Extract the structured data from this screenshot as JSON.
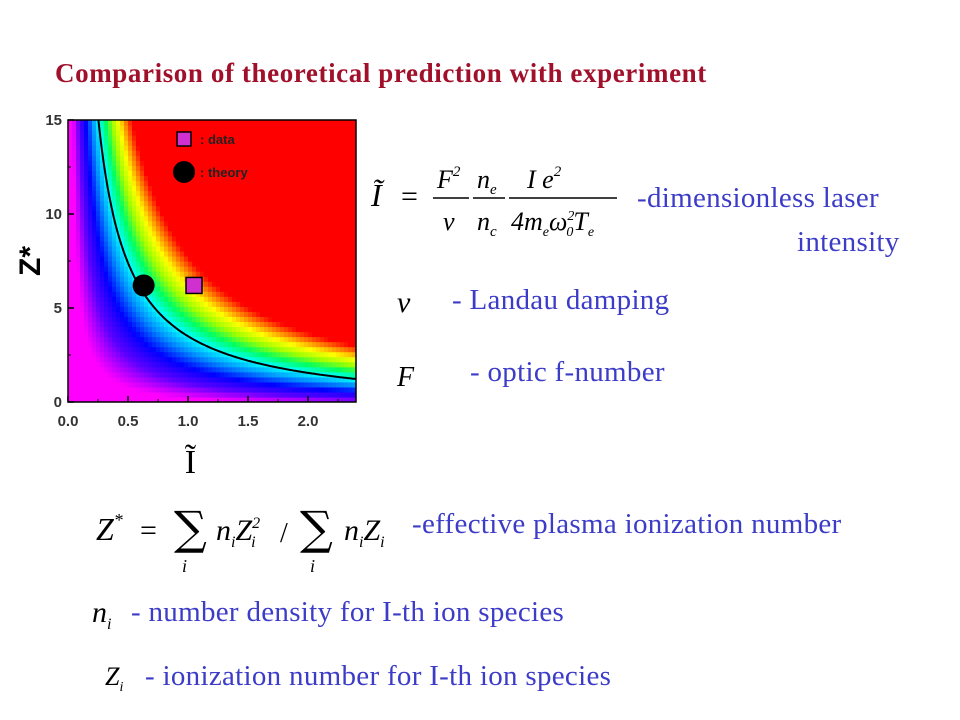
{
  "title": "Comparison of theoretical prediction with experiment",
  "chart_data": {
    "type": "heatmap",
    "xlabel": "Ĩ",
    "ylabel": "Z*",
    "xlim": [
      0,
      2.4
    ],
    "ylim": [
      0,
      15
    ],
    "xticks": [
      "0.0",
      "0.5",
      "1.0",
      "1.5",
      "2.0"
    ],
    "yticks": [
      "0",
      "5",
      "10",
      "15"
    ],
    "colormap": [
      "#ff00ff",
      "#5a00ff",
      "#0000ff",
      "#0090ff",
      "#00ffff",
      "#00ff60",
      "#a0ff00",
      "#ffff00",
      "#ff8000",
      "#ff0000"
    ],
    "legend": [
      {
        "marker": "square",
        "color": "#d030d0",
        "label": ": data"
      },
      {
        "marker": "circle",
        "color": "#000000",
        "label": ":  theory"
      }
    ],
    "series": [
      {
        "name": "data",
        "marker": "square",
        "points": [
          {
            "x": 1.05,
            "y": 6.2
          }
        ]
      },
      {
        "name": "theory",
        "marker": "circle",
        "points": [
          {
            "x": 0.63,
            "y": 6.2
          }
        ]
      }
    ],
    "threshold_curve": {
      "form": "Z* = k / Ĩ",
      "k": 3.9
    }
  },
  "equations": {
    "intensity_lhs": "Ĩ",
    "intensity_desc_line1": "-dimensionless laser",
    "intensity_desc_line2": "intensity",
    "nu_symbol": "ν",
    "nu_desc": "- Landau damping",
    "f_symbol": "F",
    "f_desc": "- optic f-number",
    "z_desc": "-effective plasma ionization number",
    "ni_symbol": "n",
    "ni_sub": "i",
    "ni_desc": "- number density for I-th ion species",
    "zi_symbol": "Z",
    "zi_sub": "i",
    "zi_desc": "- ionization number for I-th ion species"
  }
}
